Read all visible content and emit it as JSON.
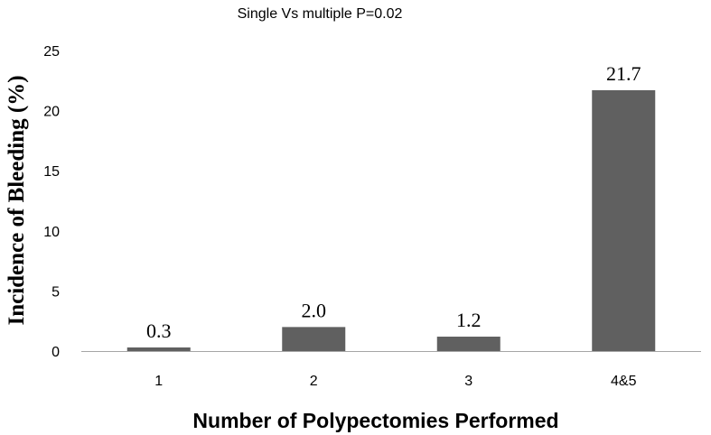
{
  "chart_data": {
    "type": "bar",
    "title": "Single Vs multiple P=0.02",
    "xlabel": "Number of Polypectomies Performed",
    "ylabel": "Incidence of Bleeding (%)",
    "categories": [
      "1",
      "2",
      "3",
      "4&5"
    ],
    "values": [
      0.3,
      2.0,
      1.2,
      21.7
    ],
    "data_labels": [
      "0.3",
      "2.0",
      "1.2",
      "21.7"
    ],
    "ylim": [
      0,
      25
    ],
    "yticks": [
      0,
      5,
      10,
      15,
      20,
      25
    ],
    "ytick_labels": [
      "0",
      "5",
      "10",
      "15",
      "20",
      "25"
    ],
    "grid": false,
    "legend": "none",
    "bar_color": "#606060"
  }
}
